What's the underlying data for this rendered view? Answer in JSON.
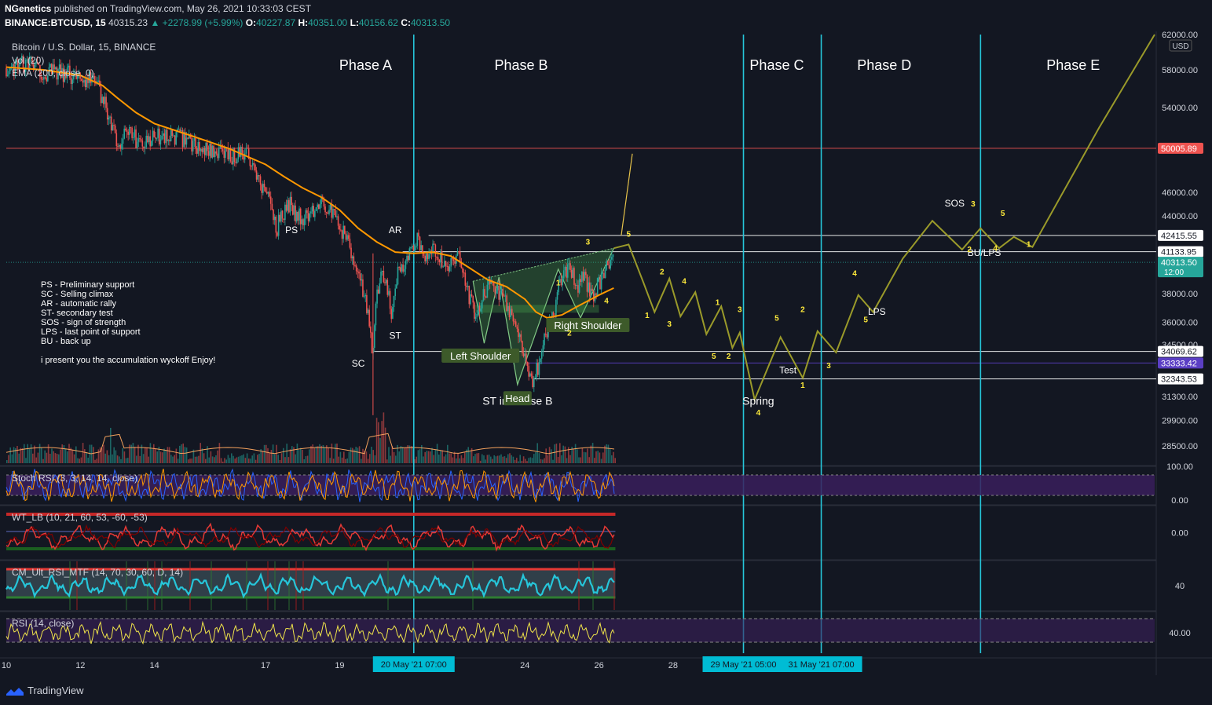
{
  "header": {
    "publisher": "NGenetics",
    "published_text": "published on TradingView.com, May 26, 2021 10:33:03 CEST",
    "symbol": "BINANCE:BTCUSD, 15",
    "price": "40315.23",
    "change": "▲ +2278.99 (+5.99%)",
    "ohlc": [
      {
        "label": "O:",
        "value": "40227.87"
      },
      {
        "label": "H:",
        "value": "40351.00"
      },
      {
        "label": "L:",
        "value": "40156.62"
      },
      {
        "label": "C:",
        "value": "40313.50"
      }
    ]
  },
  "footer": {
    "brand": "TradingView"
  },
  "colors": {
    "background": "#131722",
    "ema": "#ff9800",
    "projection": "#9a9a2a",
    "phase_line": "#26c6da",
    "resistance": "#ef5350",
    "up": "#26a69a",
    "down": "#ef5350",
    "label_green": "#3d5a2a",
    "yellow_label": "#ffeb3b",
    "stoch_band": "#3a1f5c",
    "rsi_line": "#f0e54a"
  },
  "chart_data": [
    {
      "type": "candlestick",
      "title": "Bitcoin / U.S. Dollar, 15, BINANCE",
      "indicators": [
        "Vol (20)",
        "EMA (200, close, 0)"
      ],
      "x_ticks": [
        "10",
        "12",
        "14",
        "17",
        "19",
        "24",
        "26",
        "28"
      ],
      "x_tick_days": [
        10,
        12,
        14,
        17,
        19,
        24,
        26,
        28
      ],
      "x_range_days": [
        10,
        41.0
      ],
      "y_ticks": [
        62000,
        58000,
        54000,
        46000,
        44000,
        38000,
        36000,
        34500,
        31300,
        29900,
        28500
      ],
      "y_tick_labels": [
        "62000.00",
        "58000.00",
        "54000.00",
        "46000.00",
        "44000.00",
        "38000.00",
        "36000.00",
        "34500.00",
        "31300.00",
        "29900.00",
        "28500.00"
      ],
      "y_scale": "log",
      "currency_label": "USD",
      "price_levels": [
        {
          "value": 50005.89,
          "label": "50005.89",
          "color": "#ef5350"
        },
        {
          "value": 42415.55,
          "label": "42415.55",
          "color": "#ffffff"
        },
        {
          "value": 41133.95,
          "label": "41133.95",
          "color": "#ffffff"
        },
        {
          "value": 40313.5,
          "label": "40313.50",
          "sub": "12:00",
          "color": "#26a69a"
        },
        {
          "value": 34069.62,
          "label": "34069.62",
          "color": "#ffffff"
        },
        {
          "value": 33333.42,
          "label": "33333.42",
          "color": "#5b3fc4"
        },
        {
          "value": 32343.53,
          "label": "32343.53",
          "color": "#ffffff"
        }
      ],
      "price_path": [
        [
          10,
          58200
        ],
        [
          10.5,
          58800
        ],
        [
          11,
          57800
        ],
        [
          11.5,
          57600
        ],
        [
          12,
          57300
        ],
        [
          12.4,
          56800
        ],
        [
          12.7,
          54000
        ],
        [
          13,
          50500
        ],
        [
          13.3,
          51500
        ],
        [
          13.7,
          50300
        ],
        [
          14,
          51000
        ],
        [
          14.5,
          51200
        ],
        [
          15,
          50500
        ],
        [
          15.5,
          49800
        ],
        [
          16,
          49200
        ],
        [
          16.5,
          49800
        ],
        [
          16.8,
          47000
        ],
        [
          17,
          46200
        ],
        [
          17.3,
          43000
        ],
        [
          17.6,
          45200
        ],
        [
          18,
          43500
        ],
        [
          18.5,
          45500
        ],
        [
          18.8,
          44000
        ],
        [
          19,
          43300
        ],
        [
          19.2,
          41800
        ],
        [
          19.4,
          40000
        ],
        [
          19.6,
          38500
        ],
        [
          19.8,
          36000
        ],
        [
          19.9,
          33800
        ],
        [
          20.0,
          38400
        ],
        [
          20.2,
          39600
        ],
        [
          20.4,
          36500
        ],
        [
          20.6,
          39800
        ],
        [
          20.9,
          41000
        ],
        [
          21.1,
          42600
        ],
        [
          21.3,
          40500
        ],
        [
          21.6,
          41300
        ],
        [
          21.9,
          39600
        ],
        [
          22.2,
          40800
        ],
        [
          22.4,
          38400
        ],
        [
          22.7,
          36400
        ],
        [
          23.0,
          38600
        ],
        [
          23.3,
          38200
        ],
        [
          23.6,
          36800
        ],
        [
          23.8,
          35400
        ],
        [
          24.0,
          33800
        ],
        [
          24.2,
          32000
        ],
        [
          24.4,
          33500
        ],
        [
          24.6,
          35600
        ],
        [
          24.8,
          36800
        ],
        [
          25.0,
          39500
        ],
        [
          25.2,
          39800
        ],
        [
          25.4,
          38600
        ],
        [
          25.6,
          39400
        ],
        [
          25.8,
          37700
        ],
        [
          26.0,
          38800
        ],
        [
          26.2,
          39800
        ],
        [
          26.4,
          40313
        ]
      ],
      "ema_path": [
        [
          10,
          58300
        ],
        [
          11,
          58000
        ],
        [
          12,
          57400
        ],
        [
          12.6,
          56300
        ],
        [
          13,
          55000
        ],
        [
          13.5,
          53500
        ],
        [
          14,
          52400
        ],
        [
          15,
          51200
        ],
        [
          16,
          50000
        ],
        [
          17,
          48500
        ],
        [
          17.5,
          47400
        ],
        [
          18,
          46400
        ],
        [
          18.5,
          45600
        ],
        [
          19,
          44500
        ],
        [
          19.5,
          43000
        ],
        [
          20,
          41900
        ],
        [
          20.5,
          41100
        ],
        [
          21,
          41000
        ],
        [
          21.5,
          41100
        ],
        [
          22,
          40800
        ],
        [
          22.5,
          39900
        ],
        [
          23,
          39000
        ],
        [
          23.5,
          38500
        ],
        [
          24,
          37600
        ],
        [
          24.3,
          36700
        ],
        [
          24.6,
          36300
        ],
        [
          25,
          36500
        ],
        [
          25.5,
          37200
        ],
        [
          26,
          37900
        ],
        [
          26.4,
          38400
        ]
      ],
      "projection_path": [
        [
          26.4,
          41400
        ],
        [
          26.8,
          41700
        ],
        [
          27.2,
          38800
        ],
        [
          27.5,
          36700
        ],
        [
          27.9,
          39100
        ],
        [
          28.2,
          36400
        ],
        [
          28.6,
          38100
        ],
        [
          28.9,
          35200
        ],
        [
          29.3,
          37100
        ],
        [
          29.6,
          34300
        ],
        [
          29.8,
          35300
        ],
        [
          30.2,
          31100
        ],
        [
          30.9,
          35000
        ],
        [
          31.5,
          32400
        ],
        [
          31.9,
          35400
        ],
        [
          32.4,
          34000
        ],
        [
          33.0,
          37900
        ],
        [
          33.4,
          36700
        ],
        [
          34.2,
          40600
        ],
        [
          35.0,
          43600
        ],
        [
          35.8,
          41300
        ],
        [
          36.3,
          43000
        ],
        [
          36.8,
          41400
        ],
        [
          37.2,
          42300
        ],
        [
          37.7,
          41500
        ],
        [
          39.5,
          52000
        ],
        [
          41.0,
          62000
        ]
      ],
      "annotations": [
        {
          "text": "Phase A",
          "x": 19.7,
          "y": 58000
        },
        {
          "text": "Phase B",
          "x": 23.9,
          "y": 58000
        },
        {
          "text": "Phase C",
          "x": 30.8,
          "y": 58000
        },
        {
          "text": "Phase D",
          "x": 33.7,
          "y": 58000
        },
        {
          "text": "Phase E",
          "x": 38.8,
          "y": 58000
        },
        {
          "text": "PS",
          "x": 17.7,
          "y": 42600
        },
        {
          "text": "AR",
          "x": 20.5,
          "y": 42600
        },
        {
          "text": "SC",
          "x": 19.5,
          "y": 33100
        },
        {
          "text": "ST",
          "x": 20.5,
          "y": 34900
        },
        {
          "text": "ST in Phase B",
          "x": 23.8,
          "y": 30800
        },
        {
          "text": "Spring",
          "x": 30.3,
          "y": 30800
        },
        {
          "text": "Test",
          "x": 31.1,
          "y": 32700
        },
        {
          "text": "LPS",
          "x": 33.5,
          "y": 36500
        },
        {
          "text": "SOS",
          "x": 35.6,
          "y": 44800
        },
        {
          "text": "BU/LPS",
          "x": 36.4,
          "y": 40800
        }
      ],
      "tag_labels": [
        {
          "text": "Left Shoulder",
          "x": 22.8,
          "y": 33600
        },
        {
          "text": "Head",
          "x": 23.8,
          "y": 31000
        },
        {
          "text": "Right Shoulder",
          "x": 25.7,
          "y": 35600
        }
      ],
      "wave_numbers": [
        {
          "text": "5",
          "x": 26.8,
          "y": 42300
        },
        {
          "text": "3",
          "x": 25.7,
          "y": 41700
        },
        {
          "text": "1",
          "x": 24.9,
          "y": 38600
        },
        {
          "text": "4",
          "x": 26.2,
          "y": 37300
        },
        {
          "text": "2",
          "x": 25.2,
          "y": 35100
        },
        {
          "text": "2",
          "x": 27.7,
          "y": 39400
        },
        {
          "text": "4",
          "x": 28.3,
          "y": 38700
        },
        {
          "text": "1",
          "x": 27.3,
          "y": 36300
        },
        {
          "text": "3",
          "x": 27.9,
          "y": 35700
        },
        {
          "text": "1",
          "x": 29.2,
          "y": 37200
        },
        {
          "text": "3",
          "x": 29.8,
          "y": 36700
        },
        {
          "text": "5",
          "x": 29.1,
          "y": 33600
        },
        {
          "text": "2",
          "x": 29.5,
          "y": 33600
        },
        {
          "text": "5",
          "x": 30.8,
          "y": 36100
        },
        {
          "text": "2",
          "x": 31.5,
          "y": 36700
        },
        {
          "text": "3",
          "x": 32.2,
          "y": 33000
        },
        {
          "text": "4",
          "x": 30.3,
          "y": 30200
        },
        {
          "text": "1",
          "x": 31.5,
          "y": 31800
        },
        {
          "text": "4",
          "x": 32.9,
          "y": 39300
        },
        {
          "text": "5",
          "x": 33.2,
          "y": 36000
        },
        {
          "text": "3",
          "x": 36.1,
          "y": 44800
        },
        {
          "text": "5",
          "x": 36.9,
          "y": 44000
        },
        {
          "text": "2",
          "x": 36.0,
          "y": 41100
        },
        {
          "text": "4",
          "x": 36.7,
          "y": 41200
        },
        {
          "text": "1",
          "x": 37.6,
          "y": 41500
        }
      ],
      "legend_notes": [
        "PS - Preliminary support",
        "SC - Selling climax",
        "AR - automatic rally",
        "ST- secondary test",
        "SOS - sign of strength",
        "LPS - last point of support",
        "BU - back up",
        "",
        "i present you the accumulation wyckoff  Enjoy!"
      ],
      "phase_lines_days": [
        21.0,
        29.9,
        32.0,
        36.3
      ],
      "time_labels": [
        {
          "text": "20 May '21   07:00",
          "x": 21.0
        },
        {
          "text": "29 May '21   05:00",
          "x": 29.9
        },
        {
          "text": "31 May '21   07:00",
          "x": 32.0
        }
      ]
    },
    {
      "type": "line",
      "title": "Stoch RSI (3, 3, 14, 14, close)",
      "y_ticks": [
        100,
        0
      ],
      "y_tick_labels": [
        "100.00",
        "0.00"
      ],
      "y_range": [
        0,
        100
      ],
      "band": [
        20,
        80
      ]
    },
    {
      "type": "line",
      "title": "WT_LB (10, 21, 60, 53, -60, -53)",
      "y_ticks": [
        0
      ],
      "y_tick_labels": [
        "0.00"
      ],
      "levels": [
        60,
        53,
        0,
        -53,
        -60
      ]
    },
    {
      "type": "line",
      "title": "CM_Ult_RSI_MTF (14, 70, 30, 60, D, 14)",
      "y_ticks": [
        40
      ],
      "y_tick_labels": [
        "40"
      ],
      "levels": [
        70,
        30
      ]
    },
    {
      "type": "line",
      "title": "RSI (14, close)",
      "y_ticks": [
        40
      ],
      "y_tick_labels": [
        "40.00"
      ],
      "levels": [
        70,
        30
      ]
    }
  ]
}
